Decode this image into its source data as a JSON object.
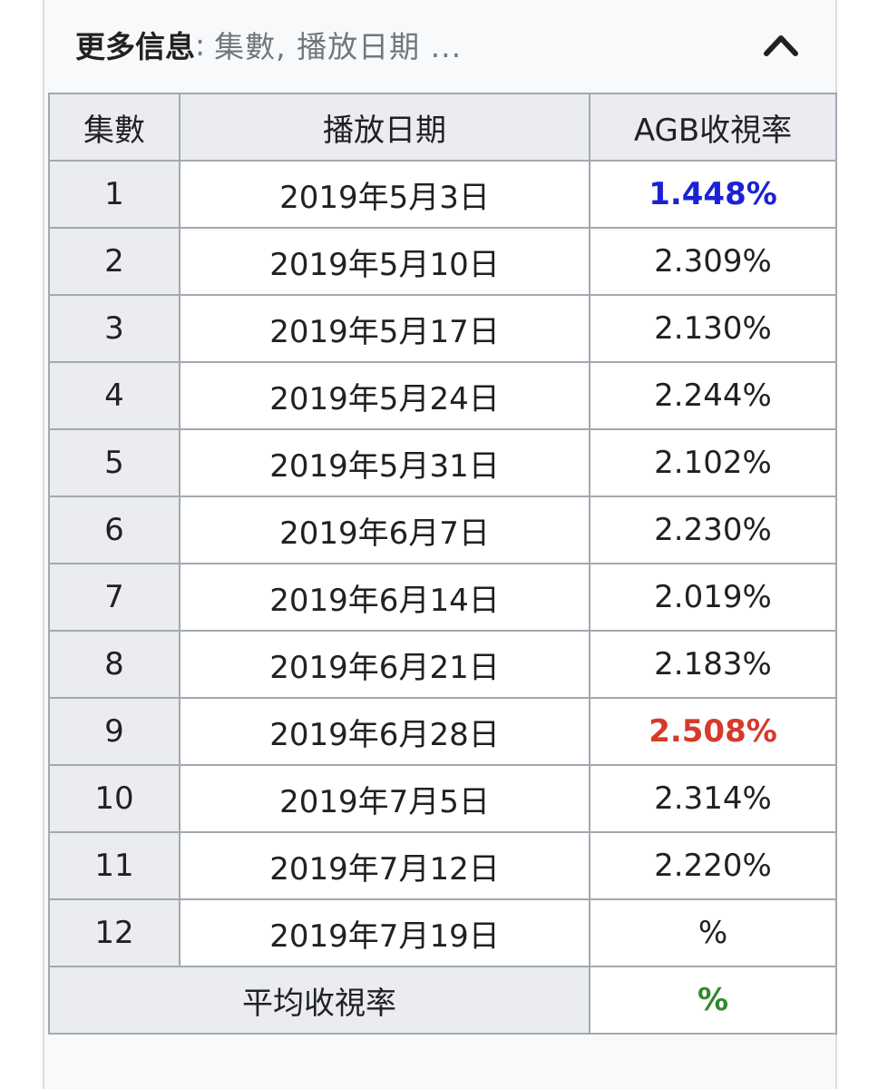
{
  "header": {
    "title": "更多信息",
    "separator": ":",
    "summary": "集數, 播放日期 ...",
    "toggle_icon": "chevron-up-icon"
  },
  "table": {
    "columns": [
      "集數",
      "播放日期",
      "AGB收視率"
    ],
    "rows": [
      {
        "episode": "1",
        "date": "2019年5月3日",
        "rating": "1.448%"
      },
      {
        "episode": "2",
        "date": "2019年5月10日",
        "rating": "2.309%"
      },
      {
        "episode": "3",
        "date": "2019年5月17日",
        "rating": "2.130%"
      },
      {
        "episode": "4",
        "date": "2019年5月24日",
        "rating": "2.244%"
      },
      {
        "episode": "5",
        "date": "2019年5月31日",
        "rating": "2.102%"
      },
      {
        "episode": "6",
        "date": "2019年6月7日",
        "rating": "2.230%"
      },
      {
        "episode": "7",
        "date": "2019年6月14日",
        "rating": "2.019%"
      },
      {
        "episode": "8",
        "date": "2019年6月21日",
        "rating": "2.183%"
      },
      {
        "episode": "9",
        "date": "2019年6月28日",
        "rating": "2.508%"
      },
      {
        "episode": "10",
        "date": "2019年7月5日",
        "rating": "2.314%"
      },
      {
        "episode": "11",
        "date": "2019年7月12日",
        "rating": "2.220%"
      },
      {
        "episode": "12",
        "date": "2019年7月19日",
        "rating": "%"
      }
    ],
    "footer": {
      "label": "平均收視率",
      "value": "%"
    }
  },
  "colors": {
    "lowest_rating": "#1a22d6",
    "highest_rating": "#d63a2a",
    "average": "#2f8a2f"
  }
}
